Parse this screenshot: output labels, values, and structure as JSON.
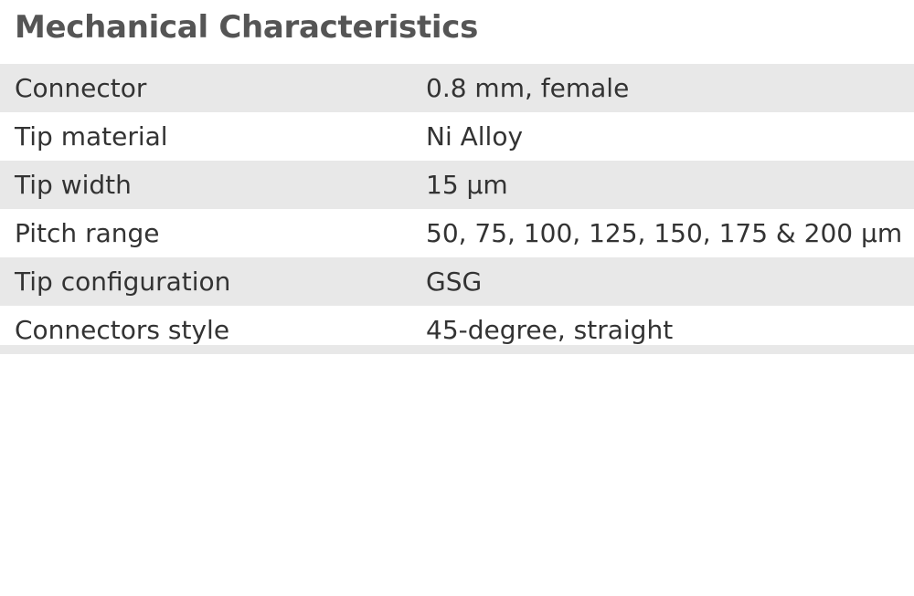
{
  "title": "Mechanical Characteristics",
  "rows": [
    {
      "label": "Connector",
      "value": "0.8 mm, female"
    },
    {
      "label": "Tip material",
      "value": "Ni Alloy"
    },
    {
      "label": "Tip width",
      "value": "15 µm"
    },
    {
      "label": "Pitch range",
      "value": "50, 75, 100, 125, 150, 175 & 200 µm"
    },
    {
      "label": "Tip configuration",
      "value": "GSG"
    },
    {
      "label": "Connectors style",
      "value": "45-degree, straight"
    }
  ],
  "colors": {
    "title": "#555555",
    "text": "#333333",
    "row_shade": "#e8e8e8",
    "background": "#ffffff"
  }
}
